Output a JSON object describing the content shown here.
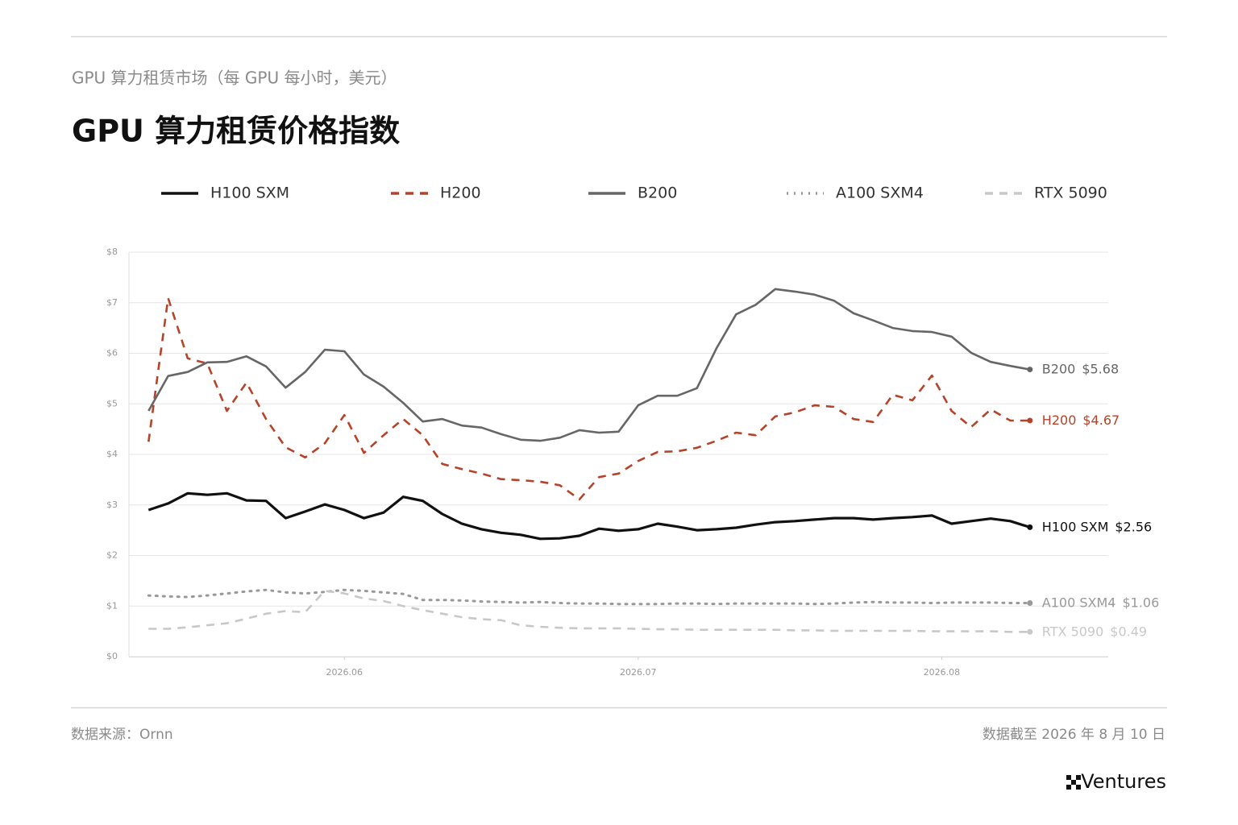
{
  "chart_data": {
    "type": "line",
    "subtitle": "GPU 算力租赁市场（每 GPU 每小时，美元）",
    "title": "GPU 算力租赁价格指数",
    "x": [
      0,
      2,
      4,
      6,
      8,
      10,
      12,
      14,
      16,
      18,
      20,
      22,
      24,
      26,
      28,
      30,
      32,
      34,
      36,
      38,
      40,
      42,
      44,
      46,
      48,
      50,
      52,
      54,
      56,
      58,
      60,
      62,
      64,
      66,
      68,
      70,
      72,
      74,
      76,
      78,
      80,
      82,
      84,
      86,
      88,
      90
    ],
    "xlim": [
      -2,
      98
    ],
    "xticks": [
      {
        "value": 20,
        "label": "2026.06"
      },
      {
        "value": 50,
        "label": "2026.07"
      },
      {
        "value": 81,
        "label": "2026.08"
      }
    ],
    "ylim": [
      0,
      8
    ],
    "yticks": [
      {
        "value": 0,
        "label": "$0"
      },
      {
        "value": 1,
        "label": "$1"
      },
      {
        "value": 2,
        "label": "$2"
      },
      {
        "value": 3,
        "label": "$3"
      },
      {
        "value": 4,
        "label": "$4"
      },
      {
        "value": 5,
        "label": "$5"
      },
      {
        "value": 6,
        "label": "$6"
      },
      {
        "value": 7,
        "label": "$7"
      },
      {
        "value": 8,
        "label": "$8"
      }
    ],
    "grid": true,
    "series": [
      {
        "name": "H100 SXM",
        "color": "#111111",
        "dash": "solid",
        "values": [
          2.9,
          3.03,
          3.23,
          3.2,
          3.23,
          3.09,
          3.08,
          2.74,
          2.87,
          3.01,
          2.9,
          2.74,
          2.85,
          3.16,
          3.08,
          2.82,
          2.63,
          2.52,
          2.45,
          2.41,
          2.33,
          2.34,
          2.39,
          2.53,
          2.49,
          2.52,
          2.63,
          2.57,
          2.5,
          2.52,
          2.55,
          2.61,
          2.66,
          2.68,
          2.71,
          2.74,
          2.74,
          2.71,
          2.74,
          2.76,
          2.79,
          2.63,
          2.68,
          2.73,
          2.68,
          2.56
        ],
        "value_labels": [
          null,
          null,
          null,
          null,
          null,
          null,
          null,
          null,
          null,
          null,
          null,
          null,
          null,
          null,
          null,
          null,
          null,
          null,
          null,
          null,
          null,
          null,
          null,
          null,
          null,
          null,
          null,
          null,
          null,
          null,
          null,
          null,
          null,
          null,
          null,
          null,
          null,
          null,
          null,
          null,
          null,
          null,
          null,
          null,
          null,
          "$2.56"
        ]
      },
      {
        "name": "H200",
        "color": "#b5432a",
        "dash": "dashed",
        "values": [
          4.25,
          7.09,
          5.9,
          5.8,
          4.86,
          5.42,
          4.7,
          4.14,
          3.94,
          4.22,
          4.78,
          4.03,
          4.38,
          4.7,
          4.38,
          3.81,
          3.71,
          3.62,
          3.51,
          3.49,
          3.46,
          3.39,
          3.11,
          3.55,
          3.62,
          3.87,
          4.05,
          4.06,
          4.13,
          4.27,
          4.43,
          4.38,
          4.75,
          4.83,
          4.97,
          4.94,
          4.7,
          4.64,
          5.18,
          5.07,
          5.56,
          4.86,
          4.54,
          4.89,
          4.67,
          4.67
        ],
        "value_labels": [
          null,
          null,
          null,
          null,
          null,
          null,
          null,
          null,
          null,
          null,
          null,
          null,
          null,
          null,
          null,
          null,
          null,
          null,
          null,
          null,
          null,
          null,
          null,
          null,
          null,
          null,
          null,
          null,
          null,
          null,
          null,
          null,
          null,
          null,
          null,
          null,
          null,
          null,
          null,
          null,
          null,
          null,
          null,
          null,
          null,
          "$4.67"
        ]
      },
      {
        "name": "B200",
        "color": "#666666",
        "dash": "solid",
        "values": [
          4.86,
          5.55,
          5.63,
          5.82,
          5.83,
          5.94,
          5.74,
          5.32,
          5.63,
          6.07,
          6.04,
          5.58,
          5.34,
          5.02,
          4.65,
          4.7,
          4.57,
          4.53,
          4.4,
          4.29,
          4.27,
          4.33,
          4.48,
          4.43,
          4.45,
          4.97,
          5.16,
          5.16,
          5.31,
          6.1,
          6.77,
          6.96,
          7.27,
          7.22,
          7.16,
          7.04,
          6.79,
          6.65,
          6.5,
          6.44,
          6.42,
          6.33,
          6.01,
          5.83,
          5.75,
          5.68
        ],
        "value_labels": [
          null,
          null,
          null,
          null,
          null,
          null,
          null,
          null,
          null,
          null,
          null,
          null,
          null,
          null,
          null,
          null,
          null,
          null,
          null,
          null,
          null,
          null,
          null,
          null,
          null,
          null,
          null,
          null,
          null,
          null,
          null,
          null,
          null,
          null,
          null,
          null,
          null,
          null,
          null,
          null,
          null,
          null,
          null,
          null,
          null,
          "$5.68"
        ]
      },
      {
        "name": "A100 SXM4",
        "color": "#999999",
        "dash": "dotted",
        "values": [
          1.21,
          1.19,
          1.18,
          1.21,
          1.25,
          1.29,
          1.32,
          1.27,
          1.25,
          1.28,
          1.32,
          1.3,
          1.27,
          1.24,
          1.12,
          1.12,
          1.11,
          1.09,
          1.08,
          1.07,
          1.08,
          1.06,
          1.05,
          1.05,
          1.04,
          1.04,
          1.04,
          1.05,
          1.05,
          1.04,
          1.05,
          1.05,
          1.05,
          1.05,
          1.04,
          1.05,
          1.07,
          1.08,
          1.07,
          1.07,
          1.06,
          1.07,
          1.07,
          1.07,
          1.06,
          1.06
        ],
        "value_labels": [
          null,
          null,
          null,
          null,
          null,
          null,
          null,
          null,
          null,
          null,
          null,
          null,
          null,
          null,
          null,
          null,
          null,
          null,
          null,
          null,
          null,
          null,
          null,
          null,
          null,
          null,
          null,
          null,
          null,
          null,
          null,
          null,
          null,
          null,
          null,
          null,
          null,
          null,
          null,
          null,
          null,
          null,
          null,
          null,
          null,
          "$1.06"
        ]
      },
      {
        "name": "RTX 5090",
        "color": "#c8c8c8",
        "dash": "dashed",
        "values": [
          0.55,
          0.55,
          0.58,
          0.62,
          0.66,
          0.75,
          0.85,
          0.9,
          0.88,
          1.3,
          1.25,
          1.15,
          1.1,
          1.0,
          0.92,
          0.85,
          0.78,
          0.74,
          0.72,
          0.62,
          0.59,
          0.57,
          0.56,
          0.56,
          0.56,
          0.55,
          0.54,
          0.54,
          0.53,
          0.53,
          0.53,
          0.53,
          0.53,
          0.52,
          0.52,
          0.51,
          0.51,
          0.51,
          0.51,
          0.51,
          0.5,
          0.5,
          0.5,
          0.5,
          0.49,
          0.49
        ],
        "value_labels": [
          null,
          null,
          null,
          null,
          null,
          null,
          null,
          null,
          null,
          null,
          null,
          null,
          null,
          null,
          null,
          null,
          null,
          null,
          null,
          null,
          null,
          null,
          null,
          null,
          null,
          null,
          null,
          null,
          null,
          null,
          null,
          null,
          null,
          null,
          null,
          null,
          null,
          null,
          null,
          null,
          null,
          null,
          null,
          null,
          null,
          "$0.49"
        ]
      }
    ]
  },
  "footer": {
    "source": "数据来源：Ornn",
    "date": "数据截至 2026 年 8 月 10 日",
    "brand": "Ventures"
  }
}
